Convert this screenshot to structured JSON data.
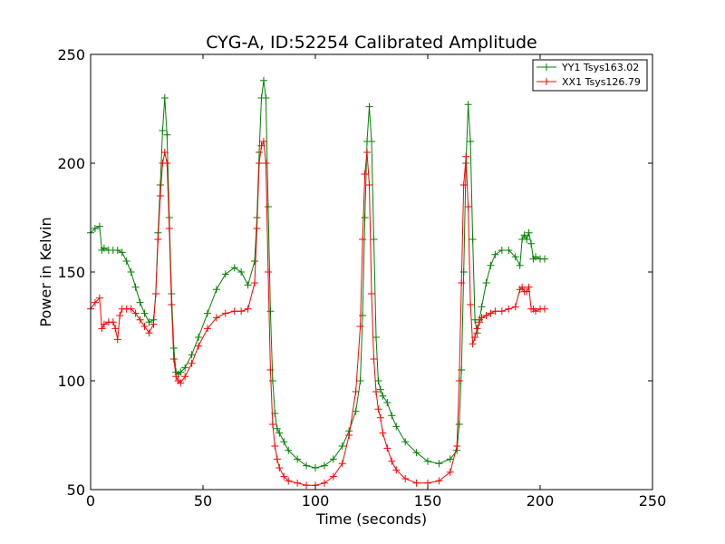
{
  "chart_data": {
    "type": "line",
    "title": "CYG-A, ID:52254 Calibrated Amplitude",
    "xlabel": "Time (seconds)",
    "ylabel": "Power in Kelvin",
    "xlim": [
      0,
      250
    ],
    "ylim": [
      50,
      250
    ],
    "xticks": [
      0,
      50,
      100,
      150,
      200,
      250
    ],
    "yticks": [
      50,
      100,
      150,
      200,
      250
    ],
    "grid": false,
    "legend_position": "top-right",
    "marker": "+",
    "series": [
      {
        "name": "YY1 Tsys163.02",
        "color": "#008000",
        "x": [
          0,
          2,
          4,
          5,
          6,
          8,
          10,
          12,
          14,
          16,
          18,
          20,
          22,
          24,
          26,
          28,
          29,
          30,
          31,
          32,
          33,
          34,
          35,
          36,
          37,
          38,
          39,
          40,
          42,
          45,
          48,
          52,
          56,
          60,
          64,
          67,
          70,
          73,
          74,
          75,
          76,
          77,
          78,
          79,
          80,
          81,
          82,
          83,
          84,
          86,
          88,
          92,
          96,
          100,
          104,
          108,
          112,
          115,
          118,
          120,
          121,
          122,
          123,
          124,
          125,
          126,
          127,
          128,
          129,
          130,
          132,
          134,
          136,
          140,
          145,
          150,
          155,
          160,
          163,
          164,
          165,
          166,
          167,
          168,
          169,
          170,
          171,
          172,
          173,
          174,
          176,
          178,
          180,
          183,
          186,
          189,
          191,
          192,
          193,
          194,
          195,
          196,
          197,
          198,
          200,
          202
        ],
        "values": [
          168,
          170,
          171,
          160,
          161,
          160,
          160,
          160,
          159,
          155,
          150,
          143,
          136,
          131,
          127,
          128,
          140,
          168,
          190,
          215,
          230,
          213,
          175,
          140,
          115,
          104,
          103,
          104,
          106,
          112,
          120,
          131,
          142,
          149,
          152,
          150,
          144,
          155,
          175,
          205,
          230,
          238,
          230,
          180,
          132,
          100,
          85,
          78,
          76,
          72,
          68,
          64,
          61,
          60,
          61,
          64,
          70,
          77,
          86,
          100,
          130,
          175,
          210,
          226,
          210,
          165,
          120,
          100,
          96,
          93,
          90,
          84,
          79,
          72,
          67,
          63,
          62,
          64,
          68,
          80,
          105,
          150,
          200,
          227,
          210,
          165,
          128,
          122,
          128,
          134,
          145,
          153,
          158,
          160,
          160,
          157,
          153,
          165,
          167,
          165,
          168,
          163,
          156,
          157,
          156,
          156
        ]
      },
      {
        "name": "XX1 Tsys126.79",
        "color": "#ff0000",
        "x": [
          0,
          2,
          4,
          5,
          6,
          8,
          10,
          11,
          12,
          13,
          14,
          16,
          18,
          20,
          22,
          24,
          26,
          28,
          29,
          30,
          31,
          32,
          33,
          34,
          35,
          36,
          37,
          38,
          39,
          40,
          42,
          45,
          48,
          52,
          56,
          60,
          64,
          67,
          70,
          73,
          74,
          75,
          76,
          77,
          78,
          79,
          80,
          81,
          82,
          83,
          84,
          86,
          88,
          92,
          96,
          100,
          104,
          108,
          112,
          115,
          118,
          120,
          121,
          122,
          123,
          124,
          125,
          126,
          127,
          128,
          129,
          130,
          132,
          134,
          136,
          140,
          145,
          150,
          155,
          160,
          163,
          164,
          165,
          166,
          167,
          168,
          169,
          170,
          171,
          172,
          173,
          174,
          176,
          178,
          180,
          183,
          186,
          189,
          191,
          192,
          193,
          194,
          195,
          196,
          197,
          198,
          200,
          202
        ],
        "values": [
          133,
          136,
          138,
          124,
          126,
          127,
          127,
          124,
          119,
          130,
          133,
          133,
          133,
          131,
          128,
          125,
          122,
          126,
          140,
          165,
          185,
          200,
          205,
          200,
          170,
          135,
          110,
          102,
          100,
          99,
          102,
          108,
          116,
          124,
          129,
          131,
          132,
          132,
          133,
          145,
          170,
          200,
          208,
          210,
          200,
          150,
          105,
          80,
          70,
          64,
          60,
          56,
          54,
          53,
          52,
          52,
          53,
          56,
          62,
          75,
          95,
          125,
          165,
          195,
          205,
          190,
          140,
          110,
          95,
          87,
          83,
          76,
          69,
          63,
          59,
          55,
          53,
          53,
          54,
          58,
          70,
          100,
          145,
          190,
          203,
          180,
          135,
          117,
          120,
          124,
          127,
          129,
          130,
          131,
          132,
          132,
          133,
          134,
          142,
          143,
          141,
          141,
          143,
          133,
          133,
          132,
          133,
          133
        ]
      }
    ]
  }
}
